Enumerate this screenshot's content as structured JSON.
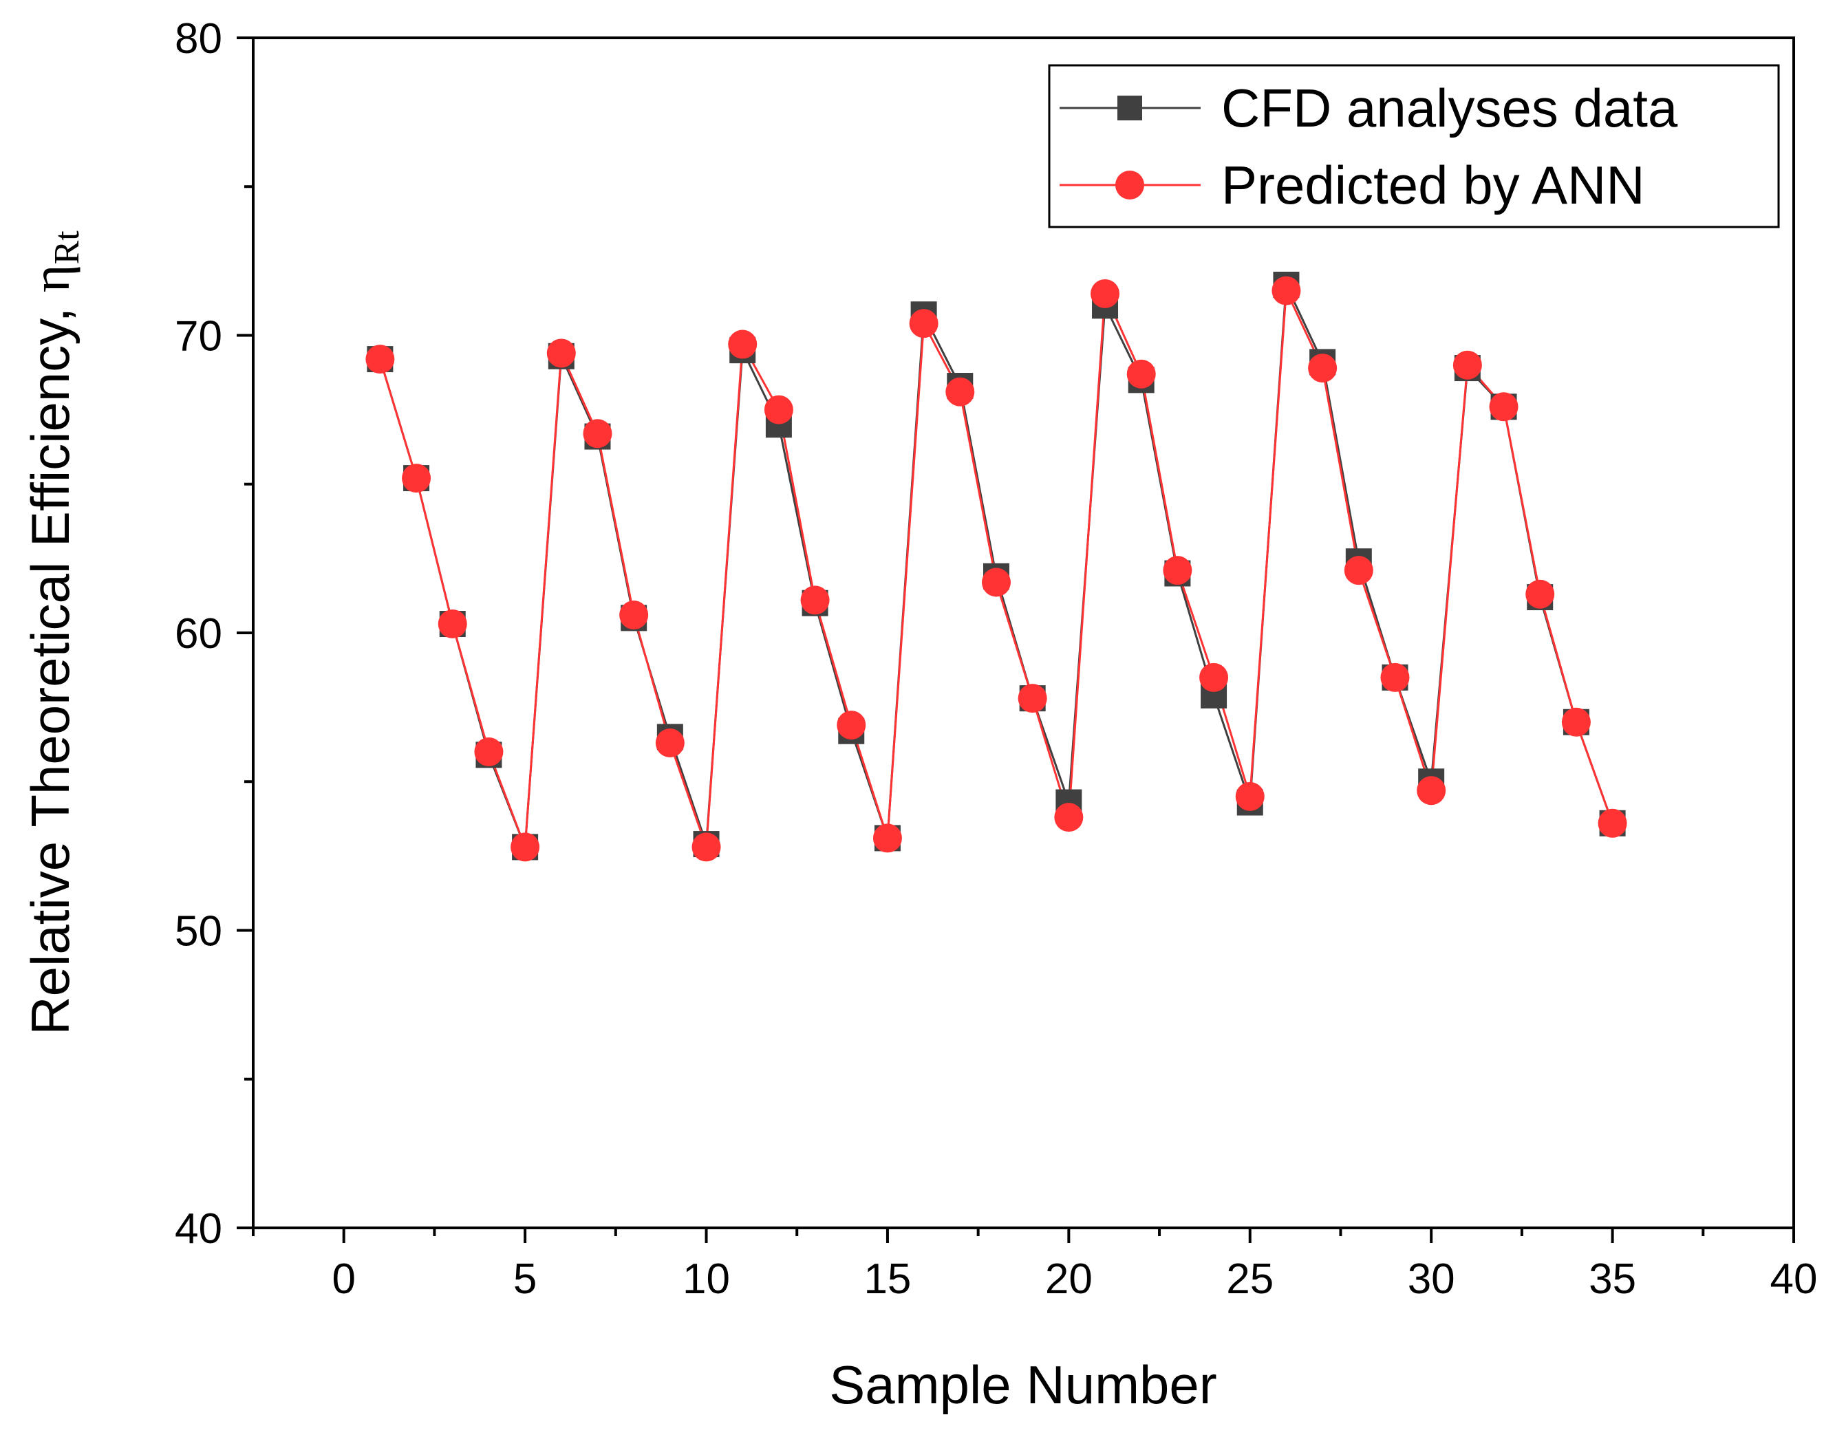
{
  "chart_data": {
    "type": "line",
    "title": "",
    "xlabel": "Sample Number",
    "ylabel": "Relative Theoretical Efficiency, ",
    "ylabel_symbol": "η",
    "ylabel_subscript": "Rt",
    "xlim": [
      -2.5,
      40
    ],
    "ylim": [
      40,
      80
    ],
    "x_ticks": [
      0,
      5,
      10,
      15,
      20,
      25,
      30,
      35,
      40
    ],
    "y_ticks": [
      40,
      50,
      60,
      70,
      80
    ],
    "x_tick_labels": [
      "0",
      "5",
      "10",
      "15",
      "20",
      "25",
      "30",
      "35",
      "40"
    ],
    "y_tick_labels": [
      "40",
      "50",
      "60",
      "70",
      "80"
    ],
    "legend_position": "top-right",
    "x": [
      1,
      2,
      3,
      4,
      5,
      6,
      7,
      8,
      9,
      10,
      11,
      12,
      13,
      14,
      15,
      16,
      17,
      18,
      19,
      20,
      21,
      22,
      23,
      24,
      25,
      26,
      27,
      28,
      29,
      30,
      31,
      32,
      33,
      34,
      35
    ],
    "series": [
      {
        "name": "CFD analyses data",
        "color": "#404040",
        "marker": "square",
        "values": [
          69.2,
          65.2,
          60.3,
          55.9,
          52.8,
          69.3,
          66.6,
          60.5,
          56.5,
          52.9,
          69.5,
          67.0,
          61.0,
          56.7,
          53.1,
          70.7,
          68.3,
          61.9,
          57.8,
          54.3,
          71.0,
          68.5,
          62.0,
          57.9,
          54.3,
          71.7,
          69.1,
          62.4,
          58.5,
          55.0,
          68.9,
          67.6,
          61.2,
          57.0,
          53.6
        ]
      },
      {
        "name": "Predicted by ANN",
        "color": "#ff3333",
        "marker": "circle",
        "values": [
          69.2,
          65.2,
          60.3,
          56.0,
          52.8,
          69.4,
          66.7,
          60.6,
          56.3,
          52.8,
          69.7,
          67.5,
          61.1,
          56.9,
          53.1,
          70.4,
          68.1,
          61.7,
          57.8,
          53.8,
          71.4,
          68.7,
          62.1,
          58.5,
          54.5,
          71.5,
          68.9,
          62.1,
          58.5,
          54.7,
          69.0,
          67.6,
          61.3,
          57.0,
          53.6
        ]
      }
    ]
  }
}
